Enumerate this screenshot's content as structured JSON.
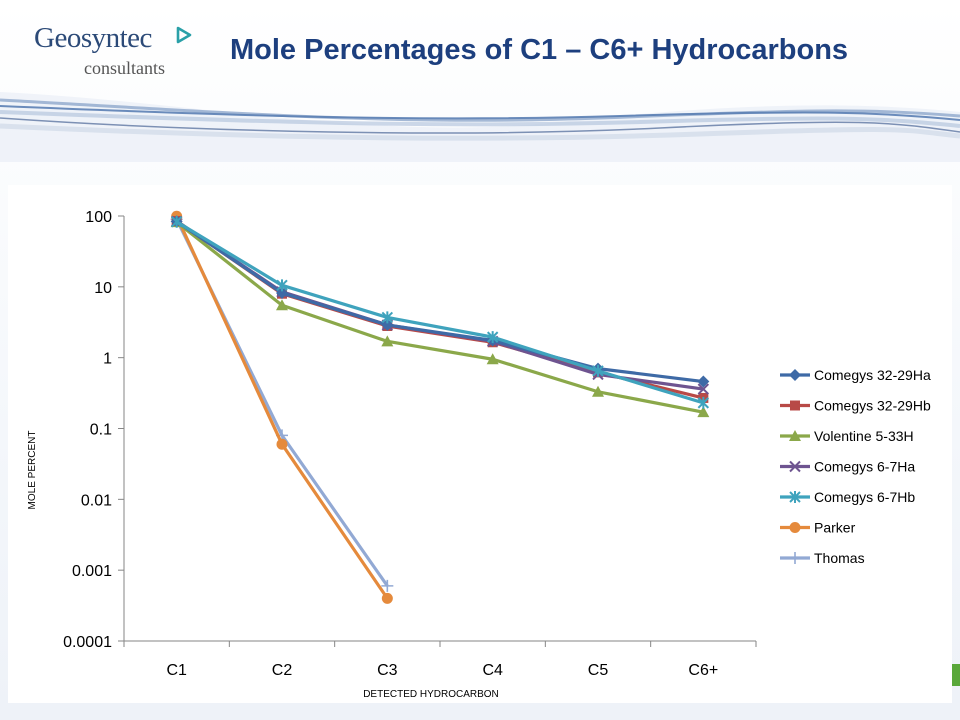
{
  "header": {
    "logo_name": "Geosyntec",
    "logo_sub": "consultants",
    "title": "Mole Percentages of C1 – C6+ Hydrocarbons"
  },
  "colors": {
    "title": "#1d3f7e",
    "logo": "#2c4a78",
    "accent_green": "#5aa83a"
  },
  "chart_data": {
    "type": "line",
    "title": "",
    "xlabel": "DETECTED HYDROCARBON",
    "ylabel": "MOLE PERCENT",
    "yscale": "log",
    "ylim": [
      0.0001,
      100
    ],
    "yticks": [
      {
        "value": 100,
        "label": "100"
      },
      {
        "value": 10,
        "label": "10"
      },
      {
        "value": 1,
        "label": "1"
      },
      {
        "value": 0.1,
        "label": "0.1"
      },
      {
        "value": 0.01,
        "label": "0.01"
      },
      {
        "value": 0.001,
        "label": "0.001"
      },
      {
        "value": 0.0001,
        "label": "0.0001"
      }
    ],
    "categories": [
      "C1",
      "C2",
      "C3",
      "C4",
      "C5",
      "C6+"
    ],
    "legend_position": "right",
    "grid": false,
    "series": [
      {
        "name": "Comegys 32-29Ha",
        "color": "#3e6aa6",
        "marker": "diamond",
        "values": [
          84,
          8.2,
          2.9,
          1.75,
          0.7,
          0.46
        ]
      },
      {
        "name": "Comegys 32-29Hb",
        "color": "#b84a47",
        "marker": "square",
        "values": [
          85,
          8.0,
          2.8,
          1.65,
          0.62,
          0.27
        ]
      },
      {
        "name": "Volentine 5-33H",
        "color": "#8ba84a",
        "marker": "triangle",
        "values": [
          82,
          5.5,
          1.7,
          0.95,
          0.33,
          0.17
        ]
      },
      {
        "name": "Comegys 6-7Ha",
        "color": "#6e5490",
        "marker": "x",
        "values": [
          84,
          8.5,
          2.9,
          1.7,
          0.58,
          0.36
        ]
      },
      {
        "name": "Comegys 6-7Hb",
        "color": "#3fa3bd",
        "marker": "star",
        "values": [
          83,
          10.5,
          3.7,
          1.95,
          0.65,
          0.23
        ]
      },
      {
        "name": "Parker",
        "color": "#e58a3c",
        "marker": "circle",
        "values": [
          99,
          0.06,
          0.0004,
          null,
          null,
          null
        ]
      },
      {
        "name": "Thomas",
        "color": "#92a9d4",
        "marker": "plus",
        "values": [
          90,
          0.08,
          0.0006,
          null,
          null,
          null
        ]
      }
    ]
  }
}
